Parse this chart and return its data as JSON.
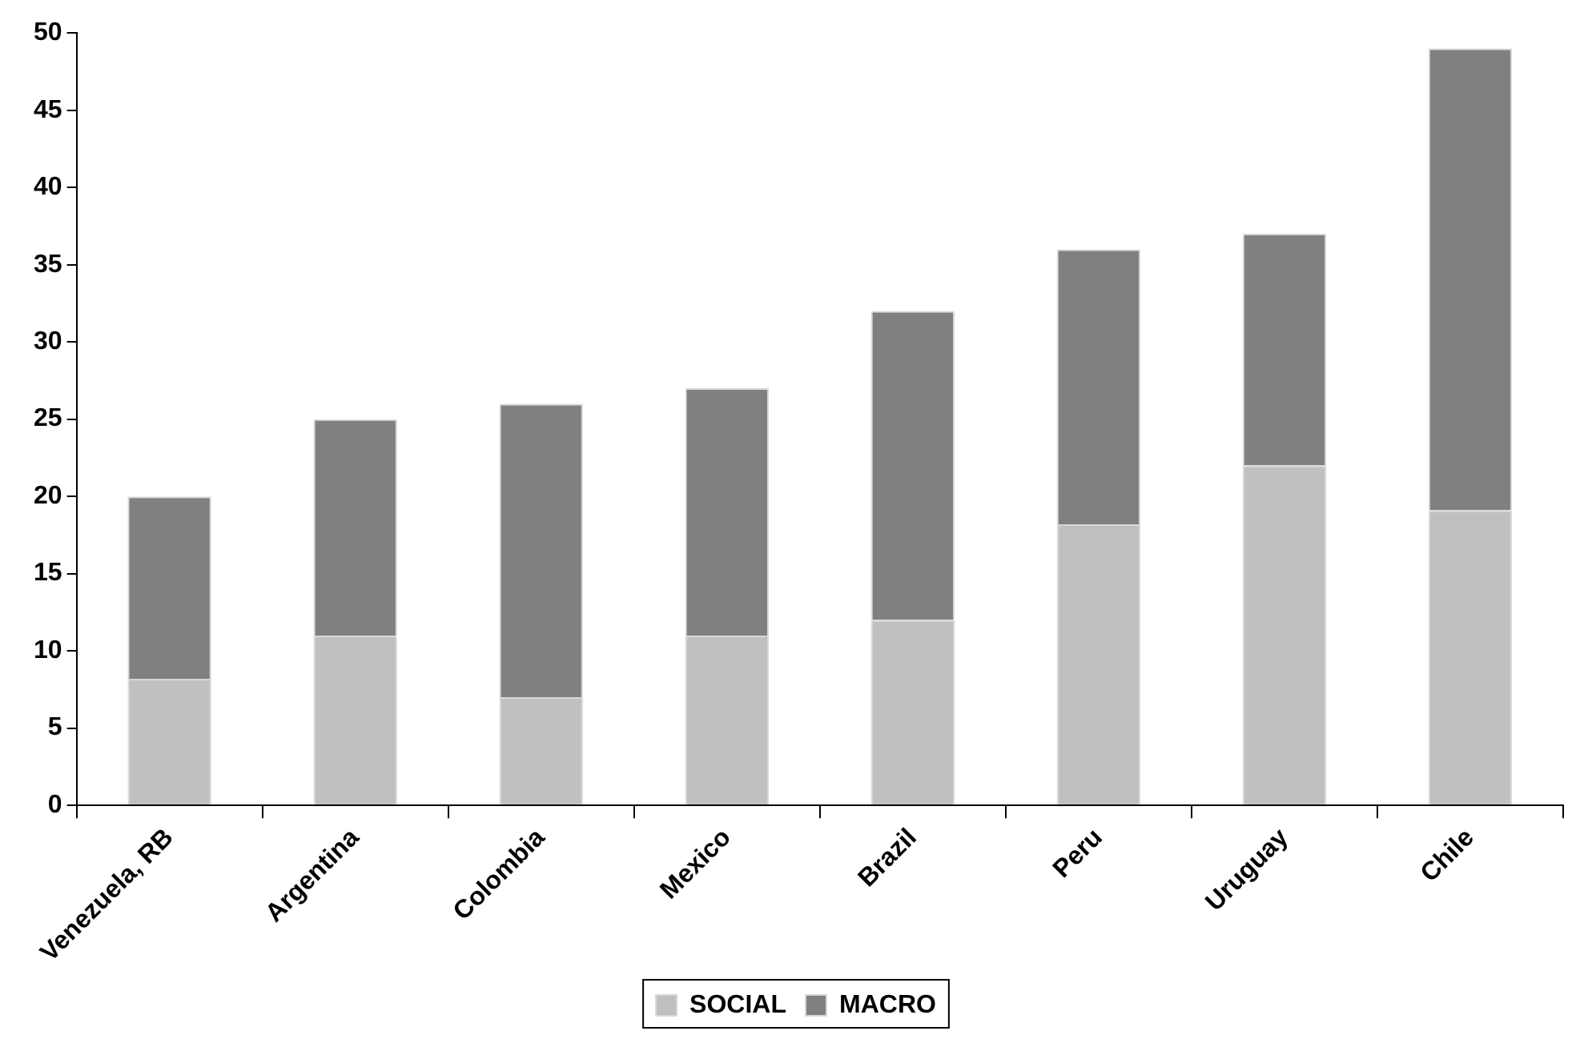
{
  "chart_data": {
    "type": "bar",
    "stacked": true,
    "categories": [
      "Venezuela, RB",
      "Argentina",
      "Colombia",
      "Mexico",
      "Brazil",
      "Peru",
      "Uruguay",
      "Chile"
    ],
    "series": [
      {
        "name": "SOCIAL",
        "color": "#c0c0c0",
        "values": [
          8.2,
          11,
          7,
          11,
          12,
          18.2,
          22,
          19.1
        ]
      },
      {
        "name": "MACRO",
        "color": "#808080",
        "values": [
          11.8,
          14,
          19,
          16,
          20,
          17.8,
          15,
          29.9
        ]
      }
    ],
    "ylim": [
      0,
      50
    ],
    "yticks": [
      0,
      5,
      10,
      15,
      20,
      25,
      30,
      35,
      40,
      45,
      50
    ],
    "grid": false,
    "legend": "bottom"
  }
}
